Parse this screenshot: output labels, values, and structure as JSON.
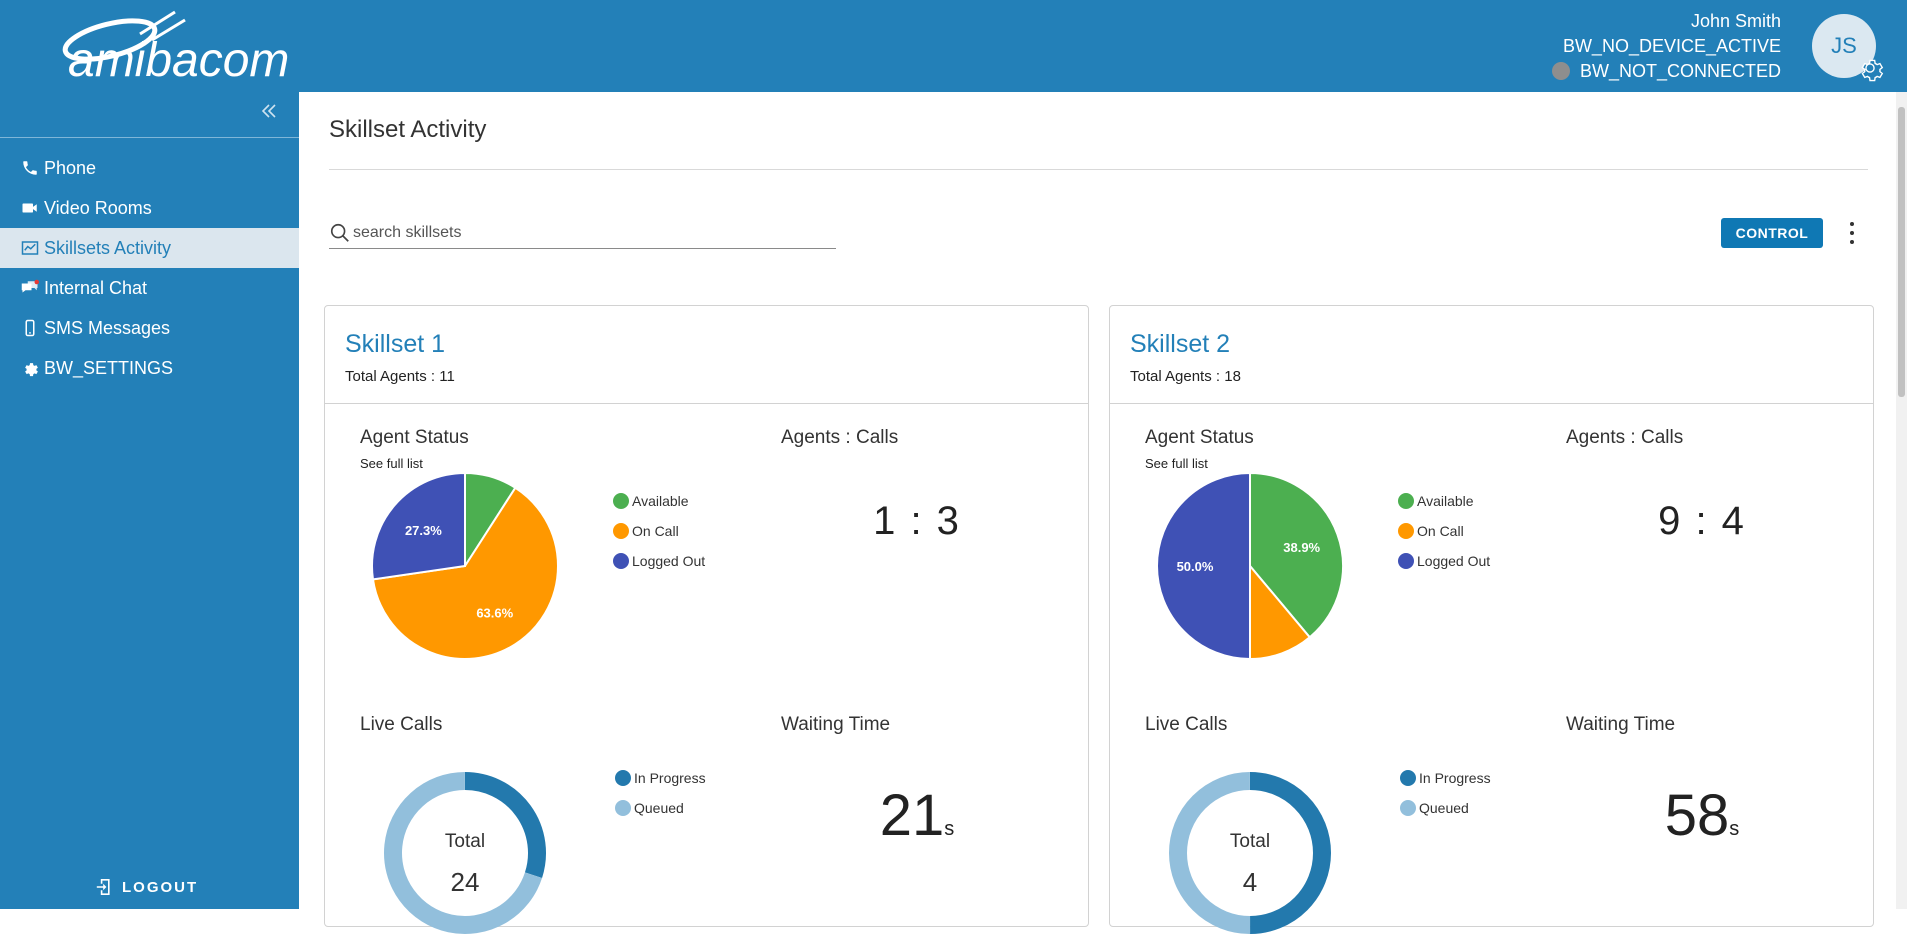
{
  "header": {
    "logo_text": "amibacom",
    "user_name": "John Smith",
    "device_status": "BW_NO_DEVICE_ACTIVE",
    "connection_status": "BW_NOT_CONNECTED",
    "avatar_initials": "JS"
  },
  "sidebar": {
    "items": [
      {
        "label": "Phone",
        "icon": "phone-icon"
      },
      {
        "label": "Video Rooms",
        "icon": "video-camera-icon"
      },
      {
        "label": "Skillsets Activity",
        "icon": "activity-chart-icon",
        "active": true
      },
      {
        "label": "Internal Chat",
        "icon": "chat-icon"
      },
      {
        "label": "SMS Messages",
        "icon": "mobile-icon"
      },
      {
        "label": "BW_SETTINGS",
        "icon": "gear-icon"
      }
    ],
    "logout_label": "LOGOUT"
  },
  "main": {
    "title": "Skillset Activity",
    "search_placeholder": "search skillsets",
    "control_label": "CONTROL"
  },
  "colors": {
    "brand": "#2380b8",
    "available": "#4caf50",
    "on_call": "#ff9800",
    "logged_out": "#3f51b5",
    "in_progress": "#2379ad",
    "queued": "#92bfdc"
  },
  "cards": [
    {
      "title": "Skillset 1",
      "total_agents_label": "Total Agents : 11",
      "agent_status_title": "Agent Status",
      "see_full_list": "See full list",
      "agents_calls_title": "Agents : Calls",
      "agents_calls_value": "1 : 3",
      "live_calls_title": "Live Calls",
      "live_total_label": "Total",
      "live_total_value": "24",
      "waiting_title": "Waiting Time",
      "waiting_value": "21",
      "waiting_unit": "s"
    },
    {
      "title": "Skillset 2",
      "total_agents_label": "Total Agents : 18",
      "agent_status_title": "Agent Status",
      "see_full_list": "See full list",
      "agents_calls_title": "Agents : Calls",
      "agents_calls_value": "9 : 4",
      "live_calls_title": "Live Calls",
      "live_total_label": "Total",
      "live_total_value": "4",
      "waiting_title": "Waiting Time",
      "waiting_value": "58",
      "waiting_unit": "s"
    }
  ],
  "chart_data": [
    {
      "type": "pie",
      "categories": [
        "Available",
        "On Call",
        "Logged Out"
      ],
      "values": [
        9.1,
        63.6,
        27.3
      ],
      "data_labels": [
        "",
        "63.6%",
        "27.3%"
      ],
      "legend": "right"
    },
    {
      "type": "pie",
      "categories": [
        "In Progress",
        "Queued"
      ],
      "values": [
        0.3,
        0.7
      ],
      "legend": "right"
    },
    {
      "type": "pie",
      "categories": [
        "Available",
        "On Call",
        "Logged Out"
      ],
      "values": [
        38.9,
        11.1,
        50.0
      ],
      "data_labels": [
        "38.9%",
        "",
        "50.0%"
      ],
      "legend": "right"
    },
    {
      "type": "pie",
      "categories": [
        "In Progress",
        "Queued"
      ],
      "values": [
        0.5,
        0.5
      ],
      "legend": "right"
    }
  ]
}
